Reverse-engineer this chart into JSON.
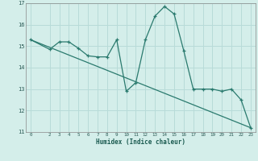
{
  "xlabel": "Humidex (Indice chaleur)",
  "bg_color": "#d4eeea",
  "grid_color": "#b8dbd8",
  "line_color": "#2a7a6e",
  "xlim": [
    -0.5,
    23.5
  ],
  "ylim": [
    11,
    17
  ],
  "yticks": [
    11,
    12,
    13,
    14,
    15,
    16,
    17
  ],
  "xticks": [
    0,
    2,
    3,
    4,
    5,
    6,
    7,
    8,
    9,
    10,
    11,
    12,
    13,
    14,
    15,
    16,
    17,
    18,
    19,
    20,
    21,
    22,
    23
  ],
  "line1_x": [
    0,
    2,
    3,
    4,
    5,
    6,
    7,
    8,
    9,
    10,
    11,
    12,
    13,
    14,
    15,
    16,
    17,
    18,
    19,
    20,
    21,
    22,
    23
  ],
  "line1_y": [
    15.3,
    14.85,
    15.2,
    15.2,
    14.9,
    14.55,
    14.5,
    14.5,
    15.3,
    12.9,
    13.3,
    15.3,
    16.4,
    16.85,
    16.5,
    14.8,
    13.0,
    13.0,
    13.0,
    12.9,
    13.0,
    12.5,
    11.2
  ],
  "line2_x": [
    0,
    23
  ],
  "line2_y": [
    15.3,
    11.2
  ]
}
